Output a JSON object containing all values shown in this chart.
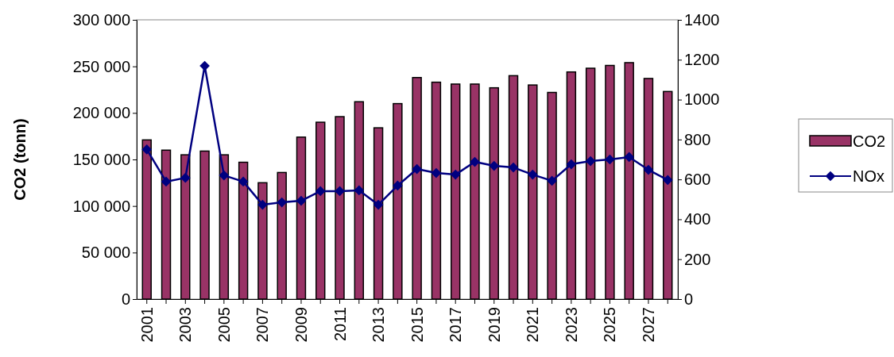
{
  "chart_data": {
    "type": "bar",
    "ylabel": "CO2 (tonn)",
    "categories": [
      "2001",
      null,
      "2003",
      null,
      "2005",
      null,
      "2007",
      null,
      "2009",
      null,
      "2011",
      null,
      "2013",
      null,
      "2015",
      null,
      "2017",
      null,
      "2019",
      null,
      "2021",
      null,
      "2023",
      null,
      "2025",
      null,
      "2027",
      null
    ],
    "series": [
      {
        "name": "CO2",
        "color": "#993366",
        "values": [
          171000,
          160000,
          155000,
          159000,
          155000,
          147000,
          125000,
          136000,
          174000,
          190000,
          196000,
          212000,
          184000,
          210000,
          238000,
          233000,
          231000,
          231000,
          227000,
          240000,
          230000,
          222000,
          244000,
          248000,
          251000,
          254000,
          237000,
          223000
        ]
      },
      {
        "name": "NOx",
        "type": "line",
        "axis": "y2",
        "color": "#000080",
        "marker": "diamond",
        "values": [
          750,
          589,
          608,
          1169,
          620,
          589,
          473,
          485,
          493,
          541,
          541,
          545,
          473,
          569,
          652,
          632,
          624,
          688,
          668,
          660,
          624,
          593,
          676,
          692,
          700,
          712,
          648,
          597
        ]
      }
    ],
    "ylim": [
      0,
      300000
    ],
    "yticks": [
      {
        "value": 0,
        "label": "0"
      },
      {
        "value": 50000,
        "label": "50 000"
      },
      {
        "value": 100000,
        "label": "100 000"
      },
      {
        "value": 150000,
        "label": "150 000"
      },
      {
        "value": 200000,
        "label": "200 000"
      },
      {
        "value": 250000,
        "label": "250 000"
      },
      {
        "value": 300000,
        "label": "300 000"
      }
    ],
    "y2lim": [
      0,
      1400
    ],
    "y2ticks": [
      0,
      200,
      400,
      600,
      800,
      1000,
      1200,
      1400
    ],
    "grid": false,
    "legend": "right"
  }
}
